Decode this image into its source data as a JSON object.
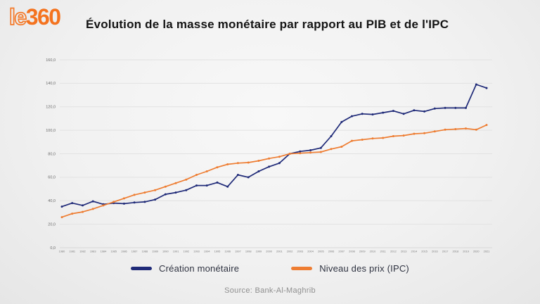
{
  "header": {
    "logo": {
      "prefix": "le",
      "suffix": "360",
      "color": "#f4731f"
    }
  },
  "footer": {
    "source": "Source: Bank-Al-Maghrib"
  },
  "chart_data": {
    "type": "line",
    "title": "Évolution de la masse monétaire par rapport au PIB et de l'IPC",
    "x": [
      1980,
      1981,
      1982,
      1983,
      1984,
      1985,
      1986,
      1987,
      1988,
      1989,
      1990,
      1991,
      1992,
      1993,
      1994,
      1995,
      1996,
      1997,
      1998,
      1999,
      2000,
      2001,
      2002,
      2003,
      2004,
      2005,
      2006,
      2007,
      2008,
      2009,
      2010,
      2011,
      2012,
      2013,
      2014,
      2015,
      2016,
      2017,
      2018,
      2019,
      2020,
      2021
    ],
    "series": [
      {
        "name": "Création monétaire",
        "color": "#1f2a78",
        "values": [
          35.0,
          38.0,
          36.0,
          39.5,
          37.0,
          38.0,
          37.5,
          38.5,
          39.0,
          41.0,
          45.5,
          47.0,
          49.0,
          53.0,
          53.0,
          55.5,
          52.0,
          62.0,
          60.0,
          65.0,
          69.0,
          72.0,
          80.0,
          82.0,
          83.0,
          85.0,
          95.0,
          107.0,
          112.0,
          114.0,
          113.5,
          115.0,
          116.5,
          114.0,
          117.0,
          116.0,
          118.5,
          119.0,
          119.0,
          119.0,
          139.0,
          136.0
        ]
      },
      {
        "name": "Niveau des prix (IPC)",
        "color": "#ee7d32",
        "values": [
          26.0,
          29.0,
          30.5,
          33.0,
          36.0,
          39.0,
          42.0,
          45.0,
          47.0,
          49.0,
          52.0,
          55.0,
          58.0,
          62.0,
          65.0,
          68.5,
          71.0,
          72.0,
          72.5,
          74.0,
          76.0,
          77.5,
          80.0,
          80.5,
          81.0,
          81.5,
          84.0,
          86.0,
          91.0,
          92.0,
          93.0,
          93.5,
          95.0,
          95.5,
          97.0,
          97.5,
          99.0,
          100.5,
          101.0,
          101.5,
          100.5,
          104.5
        ]
      }
    ],
    "ylim": [
      0,
      160
    ],
    "ytick_step": 20,
    "ytick_labels": [
      "0,0",
      "20,0",
      "40,0",
      "60,0",
      "80,0",
      "100,0",
      "120,0",
      "140,0",
      "160,0"
    ],
    "grid": true,
    "legend_position": "bottom"
  }
}
